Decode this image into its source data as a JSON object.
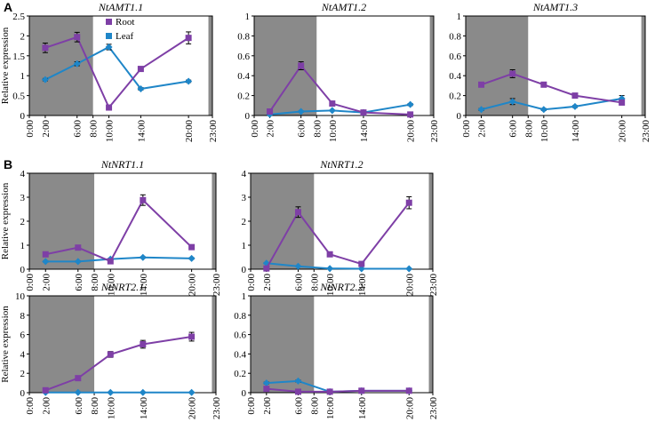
{
  "panel_labels": [
    "A",
    "B"
  ],
  "colors": {
    "root": "#7e3fa6",
    "leaf": "#1f86c8",
    "dark_period": "#8a8a8a",
    "error_bar": "#000000"
  },
  "x_axis_ticks": [
    "0:00",
    "2:00",
    "6:00",
    "8:00",
    "10:00",
    "14:00",
    "20:00",
    "23:00"
  ],
  "legend": {
    "root_label": "Root",
    "leaf_label": "Leaf"
  },
  "chart_data": [
    {
      "type": "line",
      "title": "NtAMT1.1",
      "ylabel": "Relative expression",
      "ylim": [
        0,
        2.5
      ],
      "yticks": [
        0,
        0.5,
        1,
        1.5,
        2,
        2.5
      ],
      "dark_periods": [
        [
          0,
          8
        ],
        [
          22.5,
          23
        ]
      ],
      "x": [
        2,
        6,
        10,
        14,
        20
      ],
      "series": [
        {
          "name": "Root",
          "marker": "square",
          "values": [
            1.7,
            1.97,
            0.2,
            1.17,
            1.95
          ],
          "errors": [
            0.12,
            0.12,
            0.05,
            0.05,
            0.15
          ]
        },
        {
          "name": "Leaf",
          "marker": "diamond",
          "values": [
            0.9,
            1.3,
            1.72,
            0.67,
            0.86
          ],
          "errors": [
            0.03,
            0.05,
            0.07,
            0.03,
            0.03
          ]
        }
      ]
    },
    {
      "type": "line",
      "title": "NtAMT1.2",
      "ylabel": "",
      "ylim": [
        0,
        1
      ],
      "yticks": [
        0,
        0.2,
        0.4,
        0.6,
        0.8,
        1
      ],
      "dark_periods": [
        [
          0,
          8
        ],
        [
          22.5,
          23
        ]
      ],
      "x": [
        2,
        6,
        10,
        14,
        20
      ],
      "series": [
        {
          "name": "Root",
          "marker": "square",
          "values": [
            0.04,
            0.5,
            0.12,
            0.03,
            0.01
          ],
          "errors": [
            0.01,
            0.04,
            0.01,
            0.01,
            0.005
          ]
        },
        {
          "name": "Leaf",
          "marker": "diamond",
          "values": [
            0.01,
            0.04,
            0.05,
            0.03,
            0.11
          ],
          "errors": [
            0.003,
            0.005,
            0.005,
            0.004,
            0.01
          ]
        }
      ]
    },
    {
      "type": "line",
      "title": "NtAMT1.3",
      "ylabel": "",
      "ylim": [
        0,
        1
      ],
      "yticks": [
        0,
        0.2,
        0.4,
        0.6,
        0.8,
        1
      ],
      "dark_periods": [
        [
          0,
          8
        ],
        [
          22.5,
          23
        ]
      ],
      "x": [
        2,
        6,
        10,
        14,
        20
      ],
      "series": [
        {
          "name": "Root",
          "marker": "square",
          "values": [
            0.31,
            0.42,
            0.31,
            0.2,
            0.13
          ],
          "errors": [
            0.02,
            0.04,
            0.02,
            0.015,
            0.01
          ]
        },
        {
          "name": "Leaf",
          "marker": "diamond",
          "values": [
            0.06,
            0.14,
            0.06,
            0.09,
            0.17
          ],
          "errors": [
            0.01,
            0.03,
            0.01,
            0.01,
            0.03
          ]
        }
      ]
    },
    {
      "type": "line",
      "title": "NtNRT1.1",
      "ylabel": "Relative expression",
      "ylim": [
        0,
        4
      ],
      "yticks": [
        0,
        1,
        2,
        3,
        4
      ],
      "dark_periods": [
        [
          0,
          8
        ],
        [
          22.5,
          23
        ]
      ],
      "x": [
        2,
        6,
        10,
        14,
        20
      ],
      "series": [
        {
          "name": "Root",
          "marker": "square",
          "values": [
            0.62,
            0.9,
            0.33,
            2.88,
            0.92
          ],
          "errors": [
            0.04,
            0.06,
            0.04,
            0.22,
            0.07
          ]
        },
        {
          "name": "Leaf",
          "marker": "diamond",
          "values": [
            0.32,
            0.32,
            0.42,
            0.49,
            0.45
          ],
          "errors": [
            0.02,
            0.02,
            0.03,
            0.03,
            0.03
          ]
        }
      ]
    },
    {
      "type": "line",
      "title": "NtNRT1.2",
      "ylabel": "",
      "ylim": [
        0,
        4
      ],
      "yticks": [
        0,
        1,
        2,
        3,
        4
      ],
      "dark_periods": [
        [
          0,
          8
        ],
        [
          22.5,
          23
        ]
      ],
      "x": [
        2,
        6,
        10,
        14,
        20
      ],
      "series": [
        {
          "name": "Root",
          "marker": "square",
          "values": [
            0.03,
            2.38,
            0.62,
            0.22,
            2.77
          ],
          "errors": [
            0.01,
            0.22,
            0.05,
            0.03,
            0.25
          ]
        },
        {
          "name": "Leaf",
          "marker": "diamond",
          "values": [
            0.25,
            0.12,
            0.03,
            0.02,
            0.02
          ],
          "errors": [
            0.02,
            0.01,
            0.005,
            0.005,
            0.005
          ]
        }
      ]
    },
    {
      "type": "line",
      "title": "NtNRT2.1",
      "ylabel": "Relative expression",
      "ylim": [
        0,
        10
      ],
      "yticks": [
        0,
        2,
        4,
        6,
        8,
        10
      ],
      "dark_periods": [
        [
          0,
          8
        ],
        [
          22.5,
          23
        ]
      ],
      "x": [
        2,
        6,
        10,
        14,
        20
      ],
      "series": [
        {
          "name": "Root",
          "marker": "square",
          "values": [
            0.25,
            1.5,
            3.95,
            5.0,
            5.78
          ],
          "errors": [
            0.05,
            0.1,
            0.3,
            0.4,
            0.45
          ]
        },
        {
          "name": "Leaf",
          "marker": "diamond",
          "values": [
            0.02,
            0.02,
            0.02,
            0.02,
            0.02
          ],
          "errors": [
            0.005,
            0.005,
            0.005,
            0.005,
            0.005
          ]
        }
      ]
    },
    {
      "type": "line",
      "title": "NtNRT2.2",
      "ylabel": "",
      "ylim": [
        0,
        1
      ],
      "yticks": [
        0,
        0.2,
        0.4,
        0.6,
        0.8,
        1
      ],
      "dark_periods": [
        [
          0,
          8
        ],
        [
          22.5,
          23
        ]
      ],
      "x": [
        2,
        6,
        10,
        14,
        20
      ],
      "series": [
        {
          "name": "Root",
          "marker": "square",
          "values": [
            0.04,
            0.01,
            0.01,
            0.02,
            0.02
          ],
          "errors": [
            0.01,
            0.005,
            0.005,
            0.005,
            0.005
          ]
        },
        {
          "name": "Leaf",
          "marker": "diamond",
          "values": [
            0.1,
            0.12,
            0.01,
            0.02,
            0.02
          ],
          "errors": [
            0.01,
            0.01,
            0.003,
            0.003,
            0.003
          ]
        }
      ]
    }
  ]
}
